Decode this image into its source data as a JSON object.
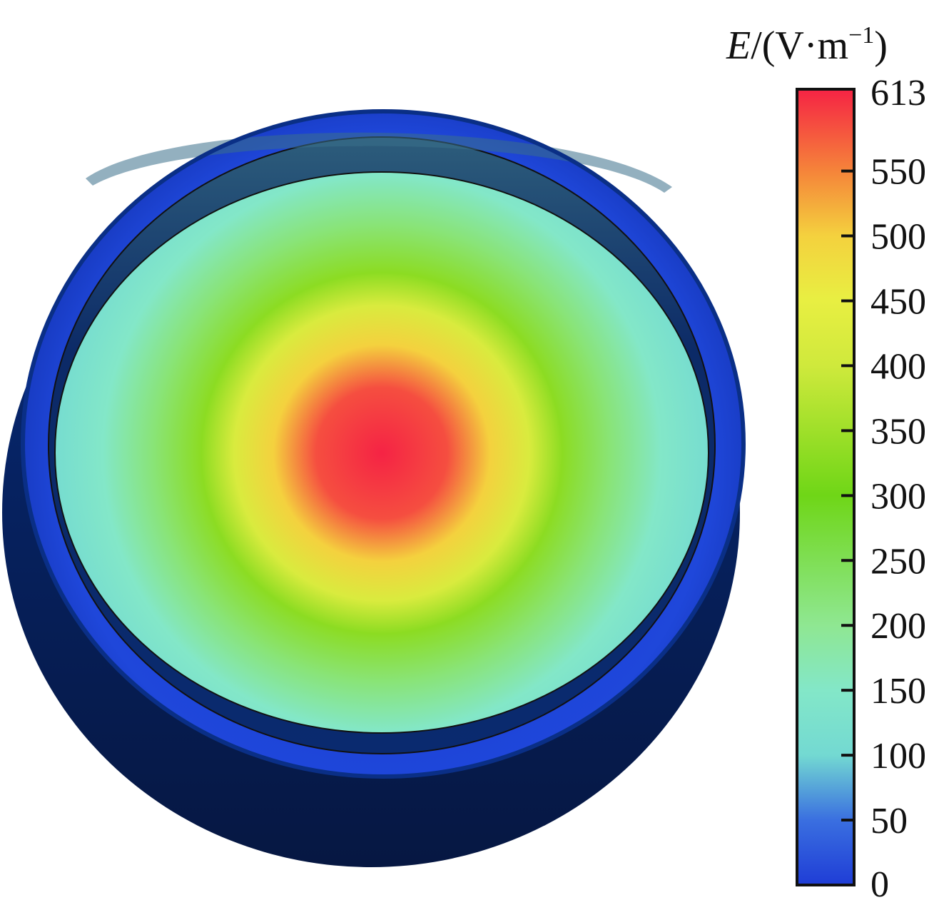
{
  "chart_data": {
    "type": "heatmap",
    "colorbar": {
      "title": {
        "symbol": "E",
        "unit": "/(V·m",
        "exponent": "−1",
        "close": ")"
      },
      "min": 0,
      "max": 613,
      "ticks": [
        0,
        50,
        100,
        150,
        200,
        250,
        300,
        350,
        400,
        450,
        500,
        550,
        613
      ],
      "tick_labels": [
        "0",
        "50",
        "100",
        "150",
        "200",
        "250",
        "300",
        "350",
        "400",
        "450",
        "500",
        "550",
        "613"
      ],
      "colormap": [
        {
          "value": 0,
          "color": "#1f3dd6"
        },
        {
          "value": 50,
          "color": "#3a6fe0"
        },
        {
          "value": 100,
          "color": "#73d9d2"
        },
        {
          "value": 150,
          "color": "#83e7c8"
        },
        {
          "value": 200,
          "color": "#8fe792"
        },
        {
          "value": 300,
          "color": "#6fd617"
        },
        {
          "value": 400,
          "color": "#cfe93c"
        },
        {
          "value": 450,
          "color": "#e8ef42"
        },
        {
          "value": 500,
          "color": "#f4d13e"
        },
        {
          "value": 550,
          "color": "#f5843a"
        },
        {
          "value": 613,
          "color": "#f52344"
        }
      ]
    },
    "field_map": {
      "description_units": "V·m^-1",
      "center_value": 613,
      "radial_profile": [
        {
          "r": 0.0,
          "value": 613
        },
        {
          "r": 0.2,
          "value": 585
        },
        {
          "r": 0.33,
          "value": 500
        },
        {
          "r": 0.45,
          "value": 420
        },
        {
          "r": 0.55,
          "value": 330
        },
        {
          "r": 0.7,
          "value": 220
        },
        {
          "r": 0.85,
          "value": 150
        },
        {
          "r": 1.0,
          "value": 110
        }
      ],
      "rim_value": 40,
      "body_value": 0
    }
  },
  "colors": {
    "outline": "#111111",
    "body_dark": "#071a46",
    "body_mid": "#0c2c78",
    "rim_blue": "#1f3fd0"
  }
}
